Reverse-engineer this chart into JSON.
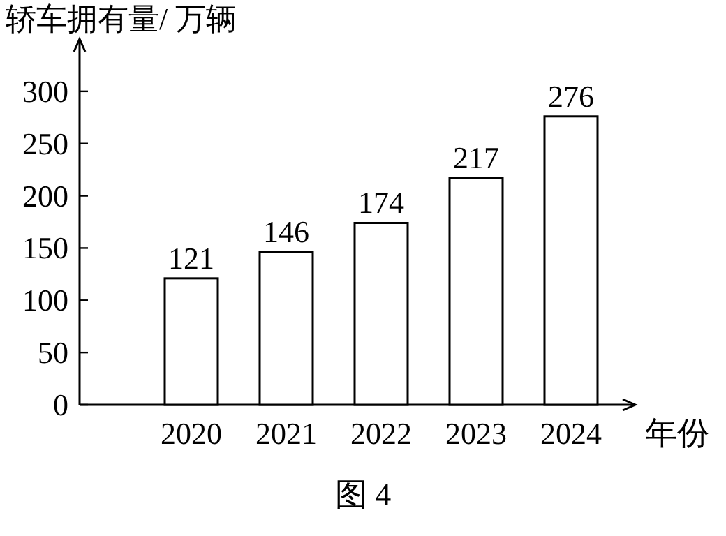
{
  "chart_data": {
    "type": "bar",
    "ylabel": "轿车拥有量/ 万辆",
    "xlabel": "年份",
    "categories": [
      "2020",
      "2021",
      "2022",
      "2023",
      "2024"
    ],
    "values": [
      121,
      146,
      174,
      217,
      276
    ],
    "color": "#ffffff",
    "ylim": [
      0,
      350
    ],
    "yticks": [
      0,
      50,
      100,
      150,
      200,
      250,
      300
    ],
    "data_labels": true,
    "grid": false,
    "annotations": [
      "图 4"
    ]
  }
}
